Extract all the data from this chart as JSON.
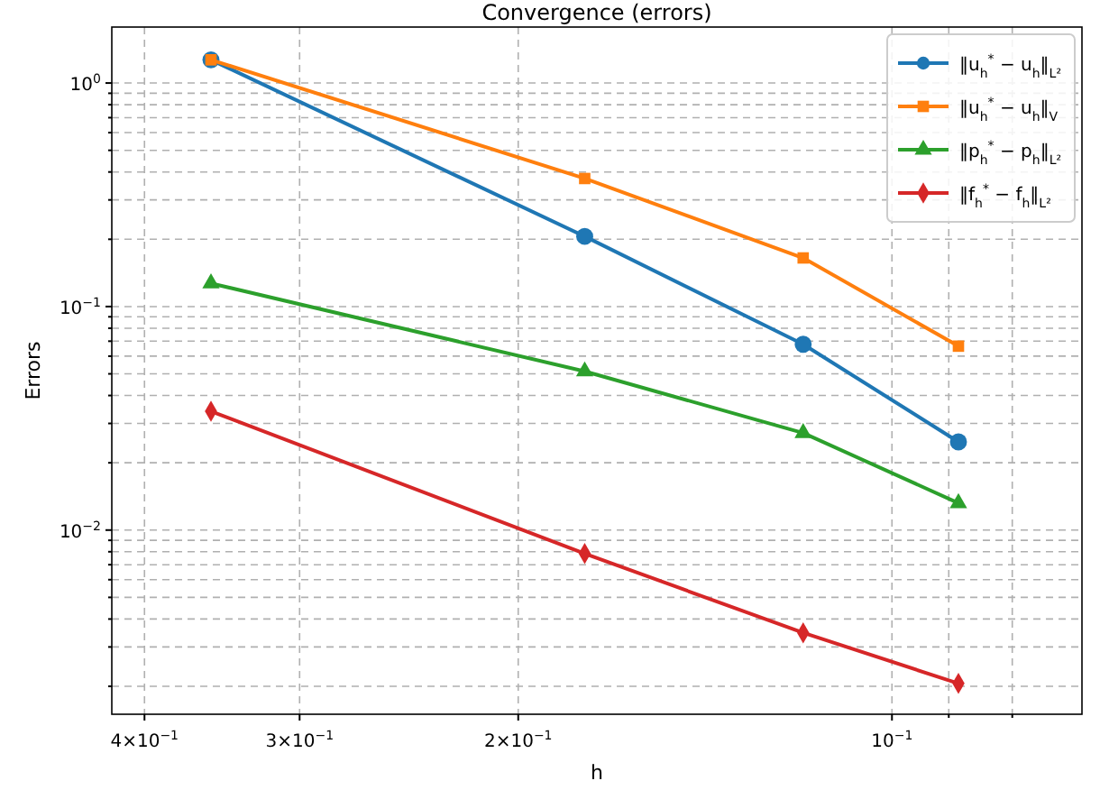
{
  "chart_data": {
    "type": "line",
    "title": "Convergence (errors)",
    "xlabel": "h",
    "ylabel": "Errors",
    "log": "xy",
    "grid": true,
    "legend": "top right",
    "line_style": "solid",
    "x": [
      0.3536,
      0.1768,
      0.1179,
      0.0884
    ],
    "xlim": [
      0.425,
      0.0703
    ],
    "xticks": [
      {
        "value": 0.4,
        "label": "4×10$^{−1}$"
      },
      {
        "value": 0.3,
        "label": "3×10$^{−1}$"
      },
      {
        "value": 0.2,
        "label": "2×10$^{−1}$"
      },
      {
        "value": 0.1,
        "label": "10$^{−1}$"
      },
      {
        "value": 0.09,
        "label": null
      },
      {
        "value": 0.08,
        "label": null
      }
    ],
    "ylim": [
      0.0015,
      1.78
    ],
    "yticks": [
      {
        "value": 0.002,
        "label": null
      },
      {
        "value": 0.003,
        "label": null
      },
      {
        "value": 0.004,
        "label": null
      },
      {
        "value": 0.005,
        "label": null
      },
      {
        "value": 0.006,
        "label": null
      },
      {
        "value": 0.007,
        "label": null
      },
      {
        "value": 0.008,
        "label": null
      },
      {
        "value": 0.009,
        "label": null
      },
      {
        "value": 0.01,
        "label": "10$^{−2}$"
      },
      {
        "value": 0.02,
        "label": null
      },
      {
        "value": 0.03,
        "label": null
      },
      {
        "value": 0.04,
        "label": null
      },
      {
        "value": 0.05,
        "label": null
      },
      {
        "value": 0.06,
        "label": null
      },
      {
        "value": 0.07,
        "label": null
      },
      {
        "value": 0.08,
        "label": null
      },
      {
        "value": 0.09,
        "label": null
      },
      {
        "value": 0.1,
        "label": "10$^{−1}$"
      },
      {
        "value": 0.2,
        "label": null
      },
      {
        "value": 0.3,
        "label": null
      },
      {
        "value": 0.4,
        "label": null
      },
      {
        "value": 0.5,
        "label": null
      },
      {
        "value": 0.6,
        "label": null
      },
      {
        "value": 0.7,
        "label": null
      },
      {
        "value": 0.8,
        "label": null
      },
      {
        "value": 0.9,
        "label": null
      },
      {
        "value": 1,
        "label": "10$^{0}$"
      }
    ],
    "series": [
      {
        "name": "‖u$_{h}$$^{*}$ − u$_{h}$‖$_{L²}$",
        "color": "#1f77b4",
        "marker": "circle",
        "values": [
          1.27,
          0.206,
          0.0678,
          0.0248
        ]
      },
      {
        "name": "‖u$_{h}$$^{*}$ − u$_{h}$‖$_{V}$",
        "color": "#ff7f0e",
        "marker": "square",
        "values": [
          1.27,
          0.374,
          0.165,
          0.0665
        ]
      },
      {
        "name": "‖p$_{h}$$^{*}$ − p$_{h}$‖$_{L²}$",
        "color": "#2ca02c",
        "marker": "triangle",
        "values": [
          0.127,
          0.0513,
          0.0272,
          0.0132
        ]
      },
      {
        "name": "‖f$_{h}$$^{*}$ − f$_{h}$‖$_{L²}$",
        "color": "#d62728",
        "marker": "diamond",
        "values": [
          0.034,
          0.00785,
          0.00347,
          0.00206
        ]
      }
    ]
  }
}
